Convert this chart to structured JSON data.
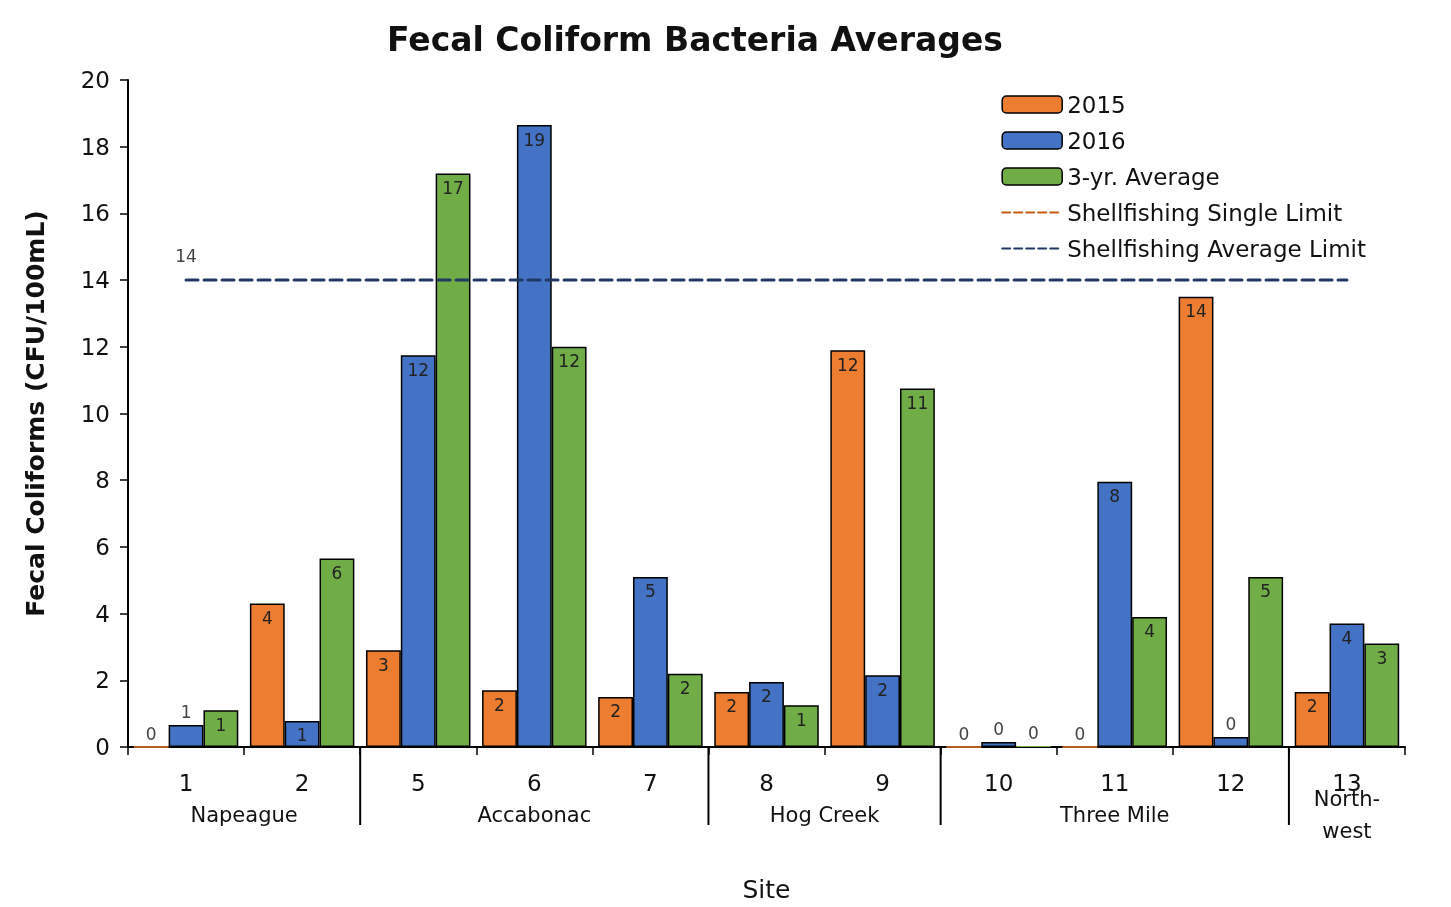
{
  "chart_data": {
    "type": "bar",
    "title": "Fecal Coliform Bacteria Averages",
    "xlabel": "Site",
    "ylabel": "Fecal Coliforms (CFU/100mL)",
    "categories": [
      "1",
      "2",
      "5",
      "6",
      "7",
      "8",
      "9",
      "10",
      "11",
      "12",
      "13"
    ],
    "annotations": [
      "Napeague",
      "Accabonac",
      "Hog Creek",
      "Three Mile",
      "North-west"
    ],
    "ylim": [
      0,
      20
    ],
    "yticks": [
      0,
      2,
      4,
      6,
      8,
      10,
      12,
      14,
      16,
      18,
      20
    ],
    "grid": false,
    "legend": "top right",
    "series": [
      {
        "name": "2015",
        "color": "#ed7d31",
        "values": [
          0,
          4.3,
          2.9,
          1.7,
          1.5,
          1.65,
          11.9,
          0,
          0,
          13.5,
          1.65
        ],
        "value_labels": [
          "0",
          "4",
          "3",
          "2",
          "2",
          "2",
          "12",
          "0",
          "0",
          "14",
          "2"
        ]
      },
      {
        "name": "2016",
        "color": "#4472c4",
        "values": [
          0.66,
          0.78,
          11.75,
          18.65,
          5.1,
          1.95,
          2.15,
          0.15,
          7.95,
          0.3,
          3.7
        ],
        "value_labels": [
          "1",
          "1",
          "12",
          "19",
          "5",
          "2",
          "2",
          "0",
          "8",
          "0",
          "4"
        ]
      },
      {
        "name": "3-yr. Average",
        "color": "#70ad47",
        "values": [
          1.1,
          5.65,
          17.2,
          12,
          2.2,
          1.25,
          10.75,
          0.03,
          3.9,
          5.1,
          3.1
        ],
        "value_labels": [
          "1",
          "6",
          "17",
          "12",
          "2",
          "1",
          "11",
          "0",
          "4",
          "5",
          "3"
        ]
      },
      {
        "name": "Shellfishing Single Limit",
        "type": "line",
        "color": "#c55a11",
        "line_style": "dashed",
        "values": [
          null,
          null,
          null,
          null,
          null,
          null,
          null,
          null,
          null,
          null,
          null
        ]
      },
      {
        "name": "Shellfishing Average Limit",
        "type": "line",
        "color": "#203864",
        "line_style": "dashed",
        "values": [
          14,
          14,
          14,
          14,
          14,
          14,
          14,
          14,
          14,
          14,
          14
        ],
        "value_labels": [
          "14",
          null,
          null,
          null,
          null,
          null,
          null,
          null,
          null,
          null,
          null
        ]
      }
    ]
  }
}
